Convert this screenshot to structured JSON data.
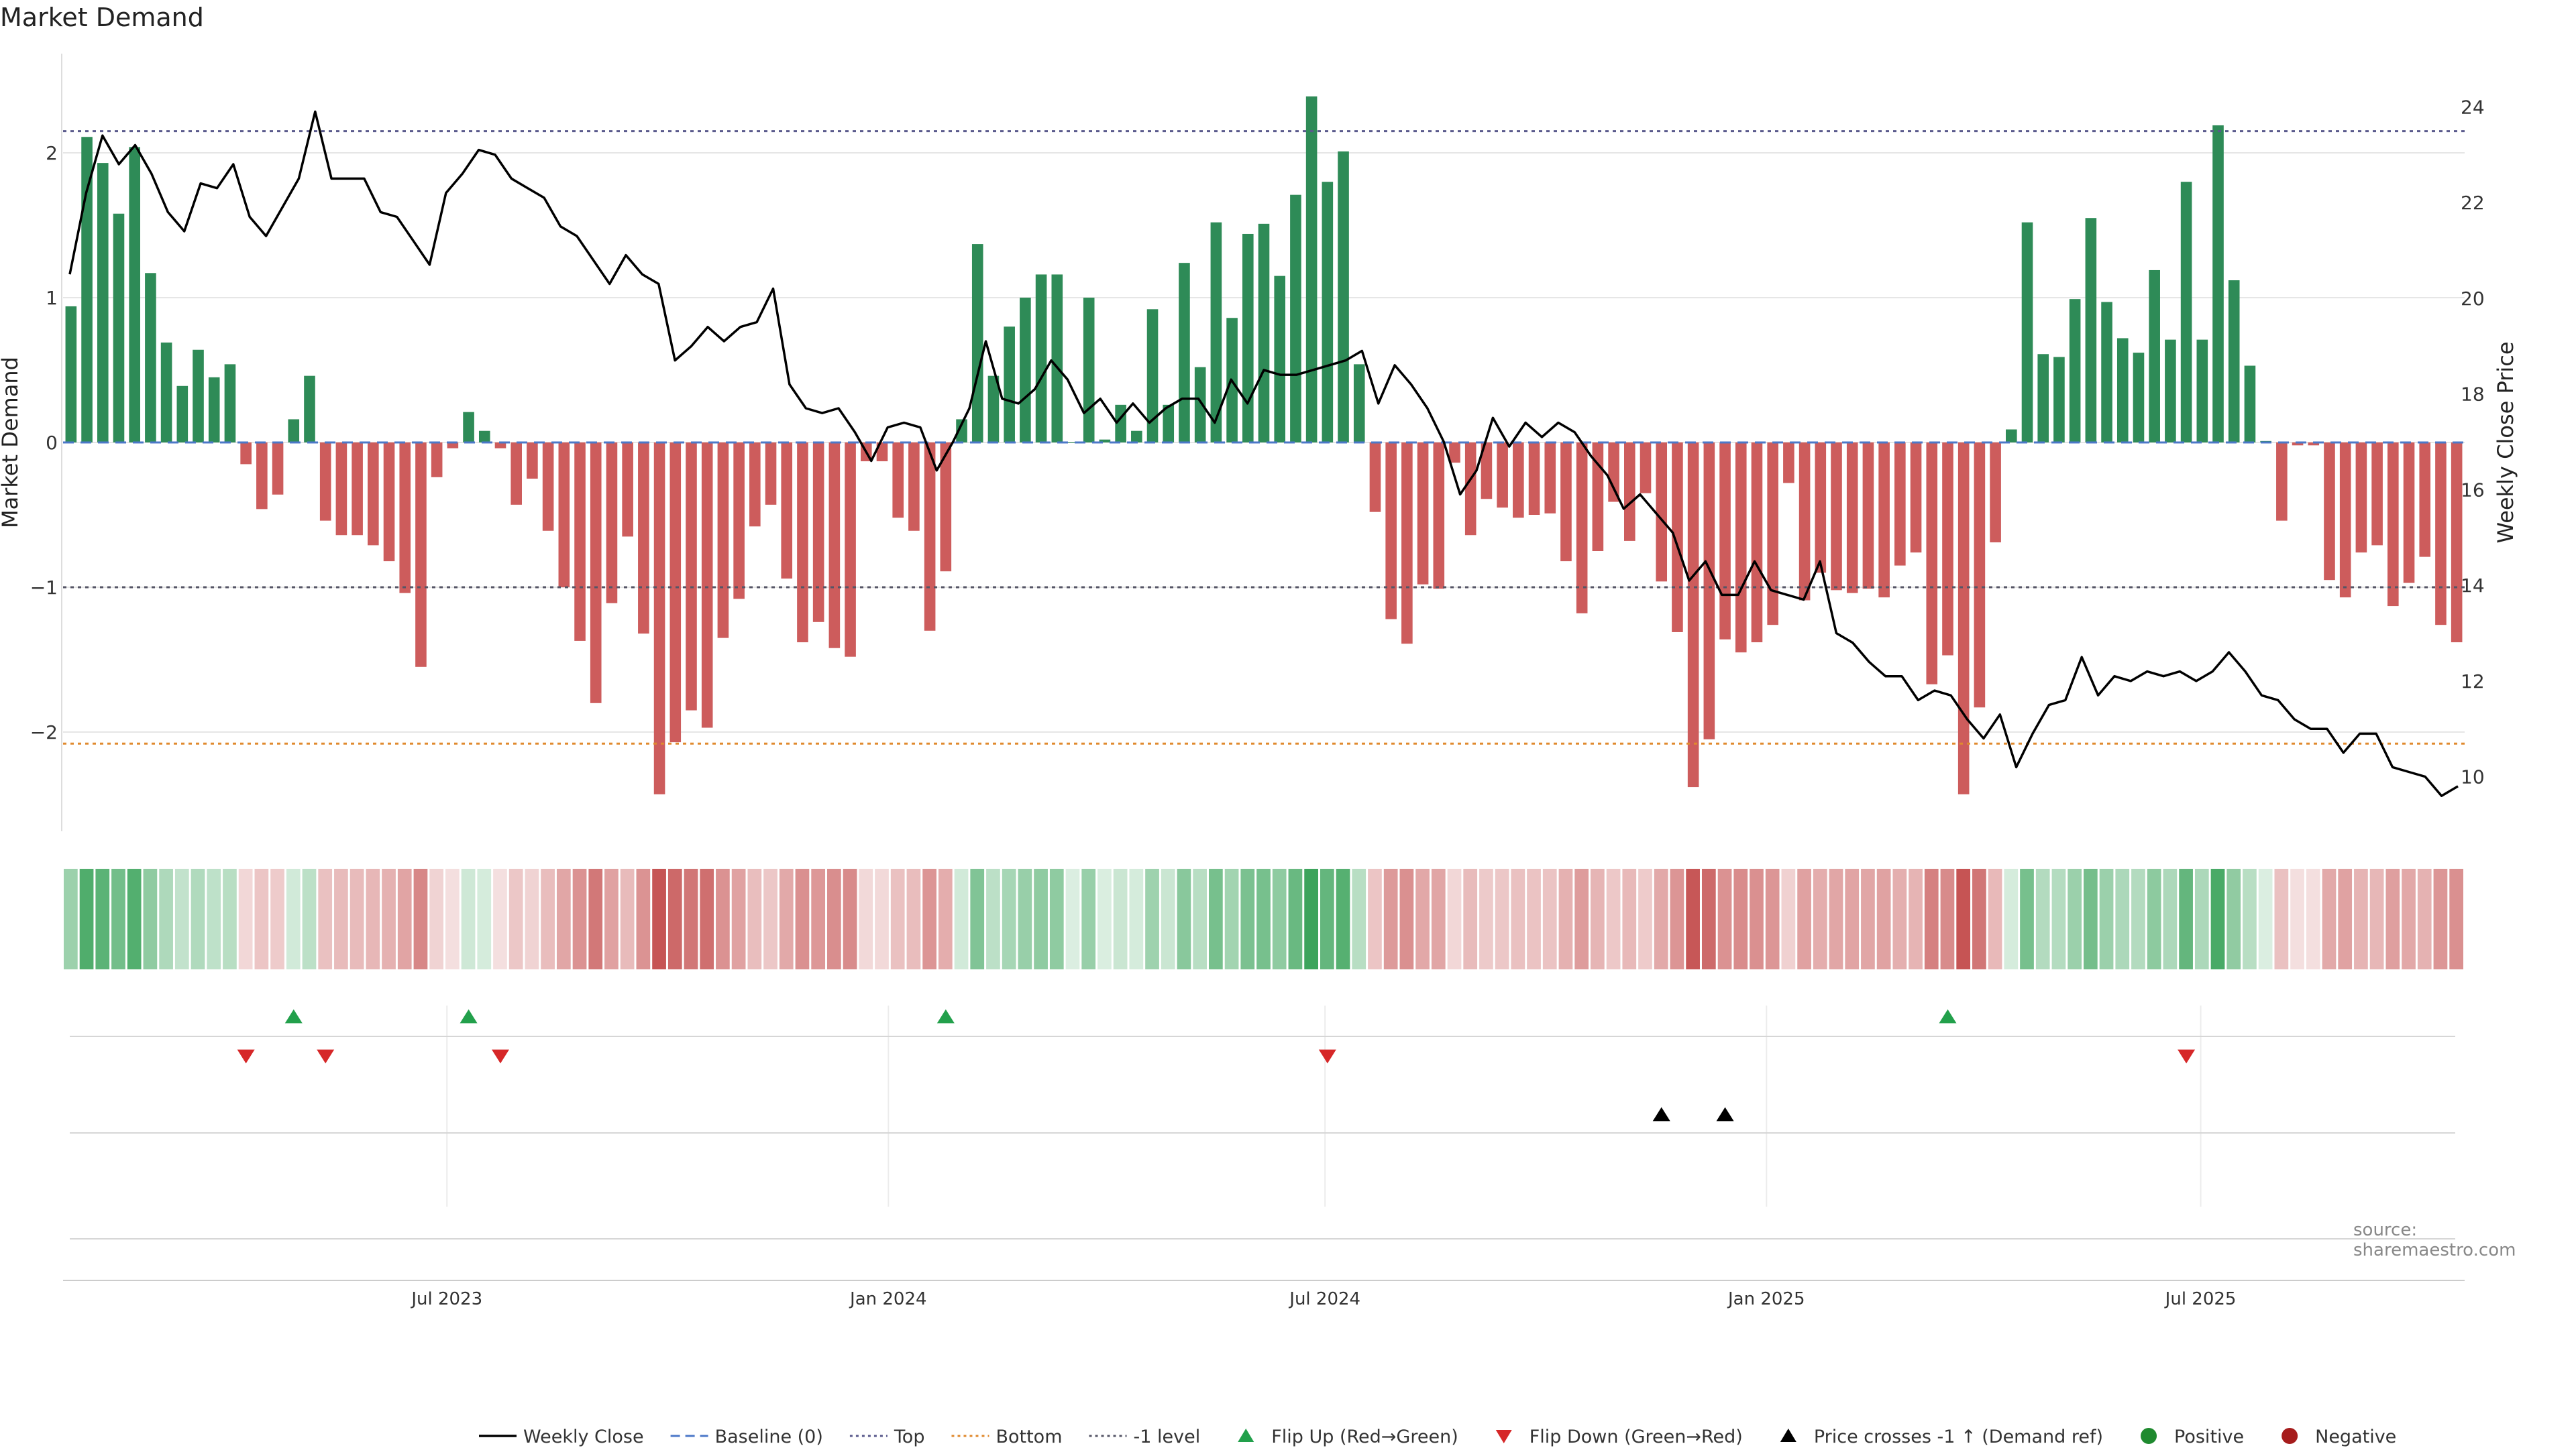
{
  "title": "Market Demand",
  "source": "source: sharemaestro.com",
  "colors": {
    "positive": "#2e8b57",
    "negative": "#cd5c5c",
    "price": "#000000",
    "baseline": "#4c78c8",
    "top": "#5a5a8c",
    "bottom": "#e08a2e",
    "minus_one": "#555566",
    "flip_up": "#22a04b",
    "flip_down": "#d62728",
    "cross_marker": "#000000",
    "grid": "#e6e6e6"
  },
  "chart_data": {
    "type": "bar",
    "title": "Market Demand",
    "ylabel": "Market Demand",
    "y2label": "Weekly Close Price",
    "ylim": [
      -2.65,
      2.65
    ],
    "y2lim": [
      9.0,
      25.0
    ],
    "yticks": [
      2,
      1,
      0,
      -1,
      -2
    ],
    "ytick_labels": [
      "2",
      "1",
      "0",
      "−1",
      "−2"
    ],
    "y2ticks": [
      24,
      22,
      20,
      18,
      16,
      14,
      12,
      10
    ],
    "date_range": [
      "2023-01-22",
      "2025-10-19"
    ],
    "xticks": [
      {
        "date": "2023-07-01",
        "label": "Jul 2023"
      },
      {
        "date": "2024-01-01",
        "label": "Jan 2024"
      },
      {
        "date": "2024-07-01",
        "label": "Jul 2024"
      },
      {
        "date": "2025-01-01",
        "label": "Jan 2025"
      },
      {
        "date": "2025-07-01",
        "label": "Jul 2025"
      }
    ],
    "reference_lines": {
      "baseline": 0,
      "top": 2.15,
      "bottom": -2.08,
      "minus_one": -1
    },
    "demand": [
      0.94,
      2.11,
      1.93,
      1.58,
      2.04,
      1.17,
      0.69,
      0.39,
      0.64,
      0.45,
      0.54,
      -0.15,
      -0.46,
      -0.36,
      0.16,
      0.46,
      -0.54,
      -0.64,
      -0.64,
      -0.71,
      -0.82,
      -1.04,
      -1.55,
      -0.24,
      -0.04,
      0.21,
      0.08,
      -0.04,
      -0.43,
      -0.25,
      -0.61,
      -1.0,
      -1.37,
      -1.8,
      -1.11,
      -0.65,
      -1.32,
      -2.43,
      -2.07,
      -1.85,
      -1.97,
      -1.35,
      -1.08,
      -0.58,
      -0.43,
      -0.94,
      -1.38,
      -1.24,
      -1.42,
      -1.48,
      -0.13,
      -0.13,
      -0.52,
      -0.61,
      -1.3,
      -0.89,
      0.16,
      1.37,
      0.46,
      0.8,
      1.0,
      1.16,
      1.16,
      0.0,
      1.0,
      0.02,
      0.26,
      0.08,
      0.92,
      0.26,
      1.24,
      0.52,
      1.52,
      0.86,
      1.44,
      1.51,
      1.15,
      1.71,
      2.39,
      1.8,
      2.01,
      0.54,
      -0.48,
      -1.22,
      -1.39,
      -0.98,
      -1.01,
      -0.14,
      -0.64,
      -0.39,
      -0.45,
      -0.52,
      -0.5,
      -0.49,
      -0.82,
      -1.18,
      -0.75,
      -0.41,
      -0.68,
      -0.35,
      -0.96,
      -1.31,
      -2.38,
      -2.05,
      -1.36,
      -1.45,
      -1.38,
      -1.26,
      -0.28,
      -1.09,
      -0.9,
      -1.02,
      -1.04,
      -1.01,
      -1.07,
      -0.85,
      -0.76,
      -1.67,
      -1.47,
      -2.43,
      -1.83,
      -0.69,
      0.09,
      1.52,
      0.61,
      0.59,
      0.99,
      1.55,
      0.97,
      0.72,
      0.62,
      1.19,
      0.71,
      1.8,
      0.71,
      2.19,
      1.12,
      0.53,
      0.01,
      -0.54,
      -0.02,
      -0.02,
      -0.95,
      -1.07,
      -0.76,
      -0.71,
      -1.13,
      -0.97,
      -0.79,
      -1.26,
      -1.38
    ],
    "price": [
      20.5,
      22.2,
      23.4,
      22.8,
      23.2,
      22.6,
      21.8,
      21.4,
      22.4,
      22.3,
      22.8,
      21.7,
      21.3,
      21.9,
      22.5,
      23.9,
      22.5,
      22.5,
      22.5,
      21.8,
      21.7,
      21.2,
      20.7,
      22.2,
      22.6,
      23.1,
      23.0,
      22.5,
      22.3,
      22.1,
      21.5,
      21.3,
      20.8,
      20.3,
      20.9,
      20.5,
      20.3,
      18.7,
      19.0,
      19.4,
      19.1,
      19.4,
      19.5,
      20.2,
      18.2,
      17.7,
      17.6,
      17.7,
      17.2,
      16.6,
      17.3,
      17.4,
      17.3,
      16.4,
      17.0,
      17.7,
      19.1,
      17.9,
      17.8,
      18.1,
      18.7,
      18.3,
      17.6,
      17.9,
      17.4,
      17.8,
      17.4,
      17.7,
      17.9,
      17.9,
      17.4,
      18.3,
      17.8,
      18.5,
      18.4,
      18.4,
      18.5,
      18.6,
      18.7,
      18.9,
      17.8,
      18.6,
      18.2,
      17.7,
      17.0,
      15.9,
      16.4,
      17.5,
      16.9,
      17.4,
      17.1,
      17.4,
      17.2,
      16.7,
      16.3,
      15.6,
      15.9,
      15.5,
      15.1,
      14.1,
      14.5,
      13.8,
      13.8,
      14.5,
      13.9,
      13.8,
      13.7,
      14.5,
      13.0,
      12.8,
      12.4,
      12.1,
      12.1,
      11.6,
      11.8,
      11.7,
      11.2,
      10.8,
      11.3,
      10.2,
      10.9,
      11.5,
      11.6,
      12.5,
      11.7,
      12.1,
      12.0,
      12.2,
      12.1,
      12.2,
      12.0,
      12.2,
      12.6,
      12.2,
      11.7,
      11.6,
      11.2,
      11.0,
      11.0,
      10.5,
      10.9,
      10.9,
      10.2,
      10.1,
      10.0,
      9.6,
      9.8
    ],
    "flip_up_weeks": [
      14,
      25,
      55,
      118
    ],
    "flip_down_weeks": [
      11,
      16,
      27,
      79,
      133
    ],
    "price_cross_weeks": [
      100,
      104
    ]
  },
  "legend": [
    {
      "key": "weekly_close",
      "label": "Weekly Close",
      "style": "line"
    },
    {
      "key": "baseline",
      "label": "Baseline (0)",
      "style": "dash"
    },
    {
      "key": "top",
      "label": "Top",
      "style": "dot"
    },
    {
      "key": "bottom",
      "label": "Bottom",
      "style": "dot"
    },
    {
      "key": "minus_one",
      "label": "-1 level",
      "style": "dot"
    },
    {
      "key": "flip_up",
      "label": "Flip Up (Red→Green)",
      "style": "tri-up"
    },
    {
      "key": "flip_down",
      "label": "Flip Down (Green→Red)",
      "style": "tri-down"
    },
    {
      "key": "cross",
      "label": "Price crosses -1 ↑ (Demand ref)",
      "style": "tri-up"
    },
    {
      "key": "positive",
      "label": "Positive",
      "style": "circle"
    },
    {
      "key": "negative",
      "label": "Negative",
      "style": "circle"
    }
  ]
}
